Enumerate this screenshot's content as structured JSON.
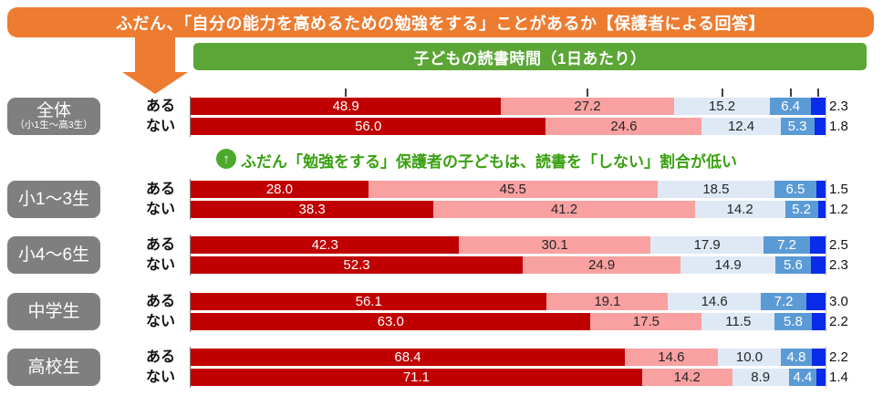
{
  "title_banner": {
    "text": "ふだん、「自分の能力を高めるための勉強をする」ことがあるか【保護者による回答】",
    "bg": "#ED7C31"
  },
  "subtitle_banner": {
    "text": "子どもの読書時間（1日あたり）",
    "bg": "#5BA636"
  },
  "down_arrow": {
    "color": "#ED7C31"
  },
  "annotation": {
    "icon": "up-arrow-circle-icon",
    "icon_glyph": "↑",
    "icon_bg": "#4CA92C",
    "text": "ふだん「勉強をする」保護者の子どもは、読書を「しない」割合が低い",
    "color": "#38A00F"
  },
  "chart_data": {
    "type": "bar",
    "stacked": true,
    "orientation": "horizontal",
    "unit": "%",
    "xlim": [
      0,
      100
    ],
    "grid": false,
    "legend_position": "none",
    "title": "ふだん、「自分の能力を高めるための勉強をする」ことがあるか【保護者による回答】",
    "subtitle": "子どもの読書時間（1日あたり）",
    "segment_colors": [
      "#C00000",
      "#F9A1A1",
      "#DEE9F5",
      "#5B9BD5",
      "#0A2BEA"
    ],
    "segment_label_colors": [
      "#FFFFFF",
      "#262626",
      "#262626",
      "#FFFFFF",
      "#111111"
    ],
    "row_label_values": [
      "ある",
      "ない"
    ],
    "groups": [
      {
        "name": "全体",
        "sub": "（小1生～高3生）",
        "rows": [
          {
            "answer": "ある",
            "values": [
              48.9,
              27.2,
              15.2,
              6.4,
              2.3
            ]
          },
          {
            "answer": "ない",
            "values": [
              56.0,
              24.6,
              12.4,
              5.3,
              1.8
            ]
          }
        ]
      },
      {
        "name": "小1～3生",
        "sub": "",
        "rows": [
          {
            "answer": "ある",
            "values": [
              28.0,
              45.5,
              18.5,
              6.5,
              1.5
            ]
          },
          {
            "answer": "ない",
            "values": [
              38.3,
              41.2,
              14.2,
              5.2,
              1.2
            ]
          }
        ]
      },
      {
        "name": "小4～6生",
        "sub": "",
        "rows": [
          {
            "answer": "ある",
            "values": [
              42.3,
              30.1,
              17.9,
              7.2,
              2.5
            ]
          },
          {
            "answer": "ない",
            "values": [
              52.3,
              24.9,
              14.9,
              5.6,
              2.3
            ]
          }
        ]
      },
      {
        "name": "中学生",
        "sub": "",
        "rows": [
          {
            "answer": "ある",
            "values": [
              56.1,
              19.1,
              14.6,
              7.2,
              3.0
            ]
          },
          {
            "answer": "ない",
            "values": [
              63.0,
              17.5,
              11.5,
              5.8,
              2.2
            ]
          }
        ]
      },
      {
        "name": "高校生",
        "sub": "",
        "rows": [
          {
            "answer": "ある",
            "values": [
              68.4,
              14.6,
              10.0,
              4.8,
              2.2
            ]
          },
          {
            "answer": "ない",
            "values": [
              71.1,
              14.2,
              8.9,
              4.4,
              1.4
            ]
          }
        ]
      }
    ]
  }
}
